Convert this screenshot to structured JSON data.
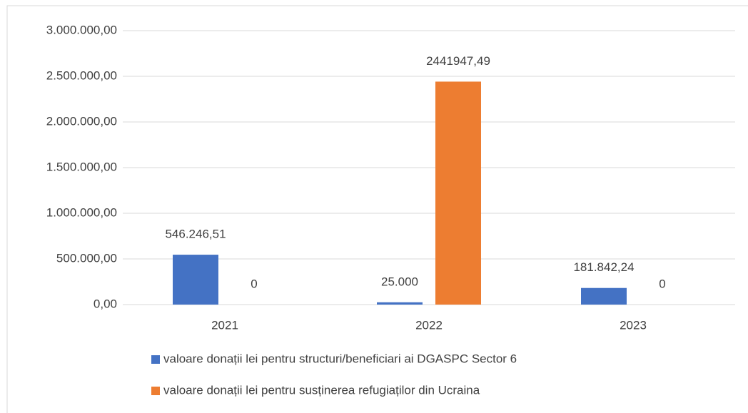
{
  "chart_data": {
    "type": "bar",
    "categories": [
      "2021",
      "2022",
      "2023"
    ],
    "series": [
      {
        "name": "valoare donații lei pentru structuri/beneficiari ai DGASPC Sector 6",
        "color": "#4472c4",
        "values": [
          546246.51,
          25000,
          181842.24
        ],
        "value_labels": [
          "546.246,51",
          "25.000",
          "181.842,24"
        ]
      },
      {
        "name": "valoare donații lei pentru susținerea refugiaților din Ucraina",
        "color": "#ed7d31",
        "values": [
          0,
          2441947.49,
          0
        ],
        "value_labels": [
          "0",
          "2441947,49",
          "0"
        ]
      }
    ],
    "ylim": [
      0,
      3000000
    ],
    "yticks": [
      {
        "value": 0,
        "label": "0,00"
      },
      {
        "value": 500000,
        "label": "500.000,00"
      },
      {
        "value": 1000000,
        "label": "1.000.000,00"
      },
      {
        "value": 1500000,
        "label": "1.500.000,00"
      },
      {
        "value": 2000000,
        "label": "2.000.000,00"
      },
      {
        "value": 2500000,
        "label": "2.500.000,00"
      },
      {
        "value": 3000000,
        "label": "3.000.000,00"
      }
    ],
    "grid": true,
    "legend": "bottom"
  }
}
